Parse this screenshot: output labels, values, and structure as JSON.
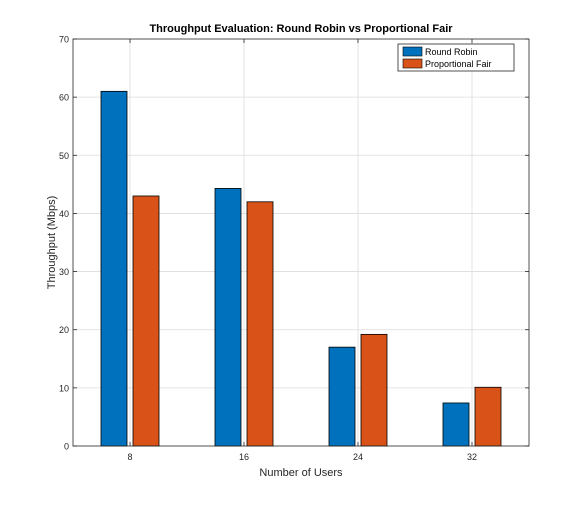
{
  "chart_data": {
    "type": "bar",
    "title": "Throughput Evaluation: Round Robin vs Proportional Fair",
    "xlabel": "Number of Users",
    "ylabel": "Throughput (Mbps)",
    "categories": [
      "8",
      "16",
      "24",
      "32"
    ],
    "ylim": [
      0,
      70
    ],
    "yticks": [
      0,
      10,
      20,
      30,
      40,
      50,
      60,
      70
    ],
    "grid": true,
    "legend_position": "top-right",
    "series": [
      {
        "name": "Round Robin",
        "color": "#0072BD",
        "values": [
          61.0,
          44.3,
          17.0,
          7.4
        ]
      },
      {
        "name": "Proportional Fair",
        "color": "#D95319",
        "values": [
          43.0,
          42.0,
          19.2,
          10.1
        ]
      }
    ]
  }
}
